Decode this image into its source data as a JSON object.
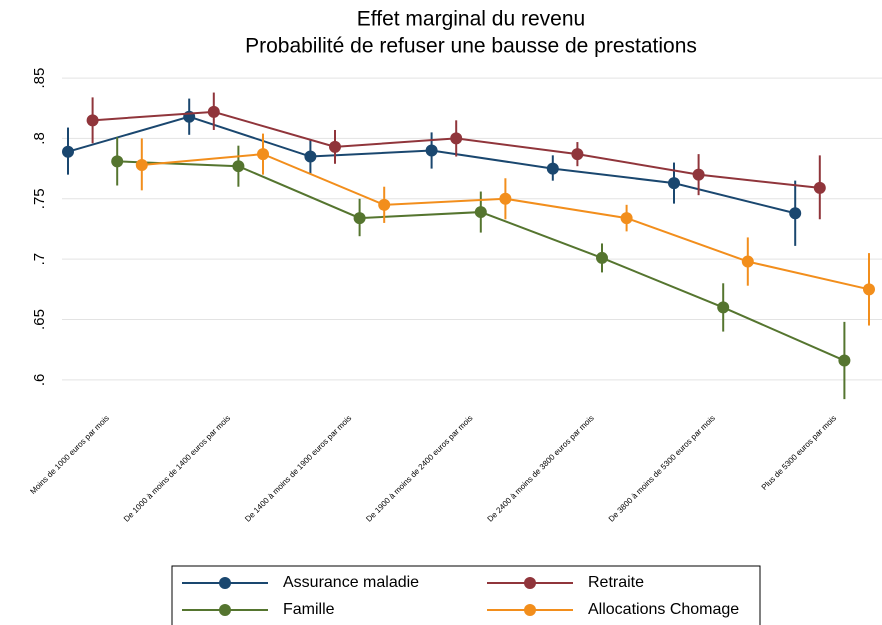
{
  "chart_data": {
    "type": "line",
    "title": "Effet marginal du revenu",
    "subtitle": "Probabilité de refuser une bausse de prestations",
    "categories": [
      "Moins de 1000 euros par mois",
      "De 1000 à moins de 1400 euros par mois",
      "De 1400 à moins de 1900 euros par mois",
      "De 1900 à moins de 2400 euros par mois",
      "De 2400 à moins de 3800 euros par mois",
      "De 3800 à moins de 5300 euros par mois",
      "Plus de 5300 euros par mois"
    ],
    "series": [
      {
        "name": "Assurance maladie",
        "color": "#1a476f",
        "values": [
          0.789,
          0.818,
          0.785,
          0.79,
          0.775,
          0.763,
          0.738
        ],
        "lower": [
          0.77,
          0.803,
          0.771,
          0.775,
          0.765,
          0.746,
          0.711
        ],
        "upper": [
          0.809,
          0.833,
          0.799,
          0.805,
          0.786,
          0.78,
          0.765
        ]
      },
      {
        "name": "Retraite",
        "color": "#90353b",
        "values": [
          0.815,
          0.822,
          0.793,
          0.8,
          0.787,
          0.77,
          0.759
        ],
        "lower": [
          0.796,
          0.807,
          0.779,
          0.785,
          0.777,
          0.753,
          0.733
        ],
        "upper": [
          0.834,
          0.838,
          0.807,
          0.815,
          0.797,
          0.787,
          0.786
        ]
      },
      {
        "name": "Famille",
        "color": "#55752f",
        "values": [
          0.781,
          0.777,
          0.734,
          0.739,
          0.701,
          0.66,
          0.616
        ],
        "lower": [
          0.761,
          0.76,
          0.719,
          0.722,
          0.689,
          0.64,
          0.584
        ],
        "upper": [
          0.801,
          0.794,
          0.75,
          0.756,
          0.713,
          0.68,
          0.648
        ]
      },
      {
        "name": "Allocations Chomage",
        "color": "#f28e1c",
        "values": [
          0.778,
          0.787,
          0.745,
          0.75,
          0.734,
          0.698,
          0.675
        ],
        "lower": [
          0.757,
          0.77,
          0.73,
          0.733,
          0.723,
          0.678,
          0.645
        ],
        "upper": [
          0.8,
          0.804,
          0.76,
          0.767,
          0.745,
          0.718,
          0.705
        ]
      }
    ],
    "ylim": [
      0.58,
      0.86
    ],
    "yticks": [
      {
        "value": 0.6,
        "label": ".6"
      },
      {
        "value": 0.65,
        "label": ".65"
      },
      {
        "value": 0.7,
        "label": ".7"
      },
      {
        "value": 0.75,
        "label": ".75"
      },
      {
        "value": 0.8,
        "label": ".8"
      },
      {
        "value": 0.85,
        "label": ".85"
      }
    ],
    "grid": true
  }
}
